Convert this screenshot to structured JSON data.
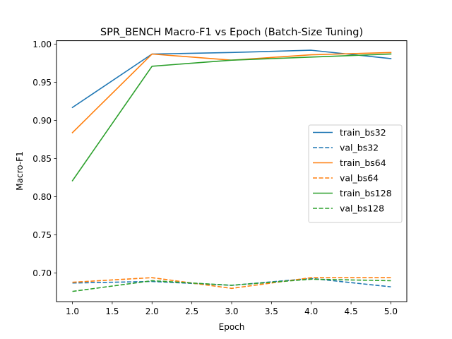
{
  "chart_data": {
    "type": "line",
    "title": "SPR_BENCH Macro-F1 vs Epoch (Batch-Size Tuning)",
    "xlabel": "Epoch",
    "ylabel": "Macro-F1",
    "xlim": [
      0.8,
      5.2
    ],
    "ylim": [
      0.6625,
      1.0045
    ],
    "xticks": [
      1.0,
      1.5,
      2.0,
      2.5,
      3.0,
      3.5,
      4.0,
      4.5,
      5.0
    ],
    "xtick_labels": [
      "1.0",
      "1.5",
      "2.0",
      "2.5",
      "3.0",
      "3.5",
      "4.0",
      "4.5",
      "5.0"
    ],
    "yticks": [
      0.7,
      0.75,
      0.8,
      0.85,
      0.9,
      0.95,
      1.0
    ],
    "ytick_labels": [
      "0.70",
      "0.75",
      "0.80",
      "0.85",
      "0.90",
      "0.95",
      "1.00"
    ],
    "grid": false,
    "legend_position": "center-right",
    "x": [
      1,
      2,
      3,
      4,
      5
    ],
    "series": [
      {
        "name": "train_bs32",
        "color": "#1f77b4",
        "dash": "solid",
        "values": [
          0.917,
          0.987,
          0.989,
          0.992,
          0.981
        ]
      },
      {
        "name": "val_bs32",
        "color": "#1f77b4",
        "dash": "dashed",
        "values": [
          0.687,
          0.689,
          0.684,
          0.693,
          0.682
        ]
      },
      {
        "name": "train_bs64",
        "color": "#ff7f0e",
        "dash": "solid",
        "values": [
          0.884,
          0.987,
          0.979,
          0.986,
          0.989
        ]
      },
      {
        "name": "val_bs64",
        "color": "#ff7f0e",
        "dash": "dashed",
        "values": [
          0.688,
          0.694,
          0.68,
          0.694,
          0.694
        ]
      },
      {
        "name": "train_bs128",
        "color": "#2ca02c",
        "dash": "solid",
        "values": [
          0.821,
          0.971,
          0.979,
          0.983,
          0.987
        ]
      },
      {
        "name": "val_bs128",
        "color": "#2ca02c",
        "dash": "dashed",
        "values": [
          0.676,
          0.69,
          0.684,
          0.692,
          0.69
        ]
      }
    ]
  }
}
